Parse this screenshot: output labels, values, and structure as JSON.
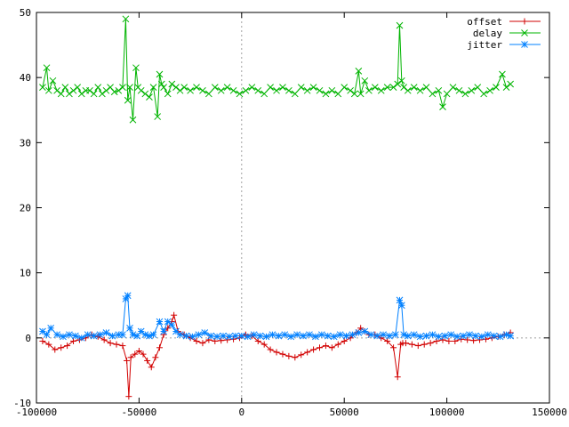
{
  "chart_data": {
    "type": "line",
    "title": "",
    "xlabel": "",
    "ylabel": "",
    "xlim": [
      -100000,
      150000
    ],
    "ylim": [
      -10,
      50
    ],
    "x_ticks": [
      -100000,
      -50000,
      0,
      50000,
      100000,
      150000
    ],
    "y_ticks": [
      -10,
      0,
      10,
      20,
      30,
      40,
      50
    ],
    "zero_lines": true,
    "legend_position": "top-right",
    "series": [
      {
        "name": "offset",
        "color": "#d20000",
        "marker": "plus",
        "x": [
          -97000,
          -94000,
          -91000,
          -88000,
          -85000,
          -82000,
          -79000,
          -76000,
          -73000,
          -70000,
          -67000,
          -64000,
          -61000,
          -58000,
          -56000,
          -55000,
          -54000,
          -52000,
          -50000,
          -48000,
          -46000,
          -44000,
          -42000,
          -40000,
          -38000,
          -36000,
          -34000,
          -33000,
          -31000,
          -28000,
          -25000,
          -22000,
          -19000,
          -16000,
          -13000,
          -10000,
          -7000,
          -4000,
          -1000,
          2000,
          5000,
          8000,
          11000,
          14000,
          17000,
          20000,
          23000,
          26000,
          29000,
          32000,
          35000,
          38000,
          41000,
          44000,
          47000,
          50000,
          53000,
          56000,
          58000,
          60000,
          62000,
          65000,
          68000,
          71000,
          74000,
          76000,
          77500,
          78500,
          80000,
          83000,
          86000,
          89000,
          92000,
          95000,
          98000,
          101000,
          104000,
          107000,
          110000,
          113000,
          116000,
          119000,
          122000,
          125000,
          128000,
          131000
        ],
        "y": [
          -0.5,
          -1.0,
          -1.8,
          -1.5,
          -1.2,
          -0.5,
          -0.3,
          0.0,
          0.5,
          0.2,
          -0.3,
          -0.8,
          -1.0,
          -1.2,
          -3.5,
          -9.0,
          -3.0,
          -2.5,
          -2.0,
          -2.5,
          -3.5,
          -4.5,
          -3.0,
          -1.5,
          0.5,
          1.5,
          2.5,
          3.5,
          1.0,
          0.5,
          0.0,
          -0.5,
          -0.8,
          -0.3,
          -0.5,
          -0.4,
          -0.3,
          -0.2,
          0.0,
          0.5,
          0.3,
          -0.5,
          -1.0,
          -1.8,
          -2.2,
          -2.5,
          -2.8,
          -3.0,
          -2.6,
          -2.2,
          -1.8,
          -1.5,
          -1.2,
          -1.5,
          -1.0,
          -0.5,
          0.0,
          0.8,
          1.5,
          1.0,
          0.5,
          0.5,
          0.0,
          -0.5,
          -1.5,
          -6.0,
          -1.0,
          -0.8,
          -0.8,
          -1.0,
          -1.2,
          -1.0,
          -0.8,
          -0.5,
          -0.3,
          -0.5,
          -0.5,
          -0.2,
          -0.3,
          -0.4,
          -0.3,
          -0.2,
          0.0,
          0.2,
          0.5,
          0.8
        ]
      },
      {
        "name": "delay",
        "color": "#00b400",
        "marker": "x",
        "x": [
          -97000,
          -95000,
          -94000,
          -92000,
          -90000,
          -88000,
          -86000,
          -84000,
          -82000,
          -80000,
          -78000,
          -76000,
          -74000,
          -72000,
          -70000,
          -68000,
          -66000,
          -64000,
          -62000,
          -60000,
          -58000,
          -56500,
          -55500,
          -54500,
          -53000,
          -51500,
          -50500,
          -49000,
          -47000,
          -45000,
          -43000,
          -41000,
          -40000,
          -39000,
          -38000,
          -36000,
          -34000,
          -32000,
          -30000,
          -28000,
          -25000,
          -22000,
          -19000,
          -16000,
          -13000,
          -10000,
          -7000,
          -4000,
          -1000,
          2000,
          5000,
          8000,
          11000,
          14000,
          17000,
          20000,
          23000,
          26000,
          29000,
          32000,
          35000,
          38000,
          41000,
          44000,
          47000,
          50000,
          53000,
          55000,
          57000,
          58000,
          60000,
          62000,
          65000,
          68000,
          71000,
          74000,
          76000,
          77000,
          78000,
          79000,
          81000,
          84000,
          87000,
          90000,
          93000,
          96000,
          98000,
          100000,
          103000,
          106000,
          109000,
          112000,
          115000,
          118000,
          121000,
          124000,
          127000,
          129000,
          131000
        ],
        "y": [
          38.5,
          41.5,
          38.0,
          39.5,
          38.0,
          37.5,
          38.5,
          37.5,
          38.0,
          38.5,
          37.5,
          38.0,
          38.0,
          37.5,
          38.5,
          37.5,
          38.0,
          38.5,
          37.8,
          38.0,
          38.5,
          49.0,
          36.5,
          38.5,
          33.5,
          41.5,
          38.5,
          38.0,
          37.5,
          37.0,
          38.5,
          34.0,
          40.5,
          39.0,
          38.5,
          37.5,
          39.0,
          38.5,
          38.0,
          38.5,
          38.0,
          38.5,
          38.0,
          37.5,
          38.5,
          38.0,
          38.5,
          38.0,
          37.5,
          38.0,
          38.5,
          38.0,
          37.5,
          38.5,
          38.0,
          38.5,
          38.0,
          37.5,
          38.5,
          38.0,
          38.5,
          38.0,
          37.5,
          38.0,
          37.5,
          38.5,
          38.0,
          37.5,
          41.0,
          37.5,
          39.5,
          38.0,
          38.5,
          38.0,
          38.5,
          38.5,
          39.0,
          48.0,
          39.5,
          38.5,
          38.0,
          38.5,
          38.0,
          38.5,
          37.5,
          38.0,
          35.5,
          37.5,
          38.5,
          38.0,
          37.5,
          38.0,
          38.5,
          37.5,
          38.0,
          38.5,
          40.5,
          38.5,
          39.0
        ]
      },
      {
        "name": "jitter",
        "color": "#0080ff",
        "marker": "star",
        "x": [
          -97000,
          -95000,
          -93000,
          -90000,
          -87000,
          -84000,
          -81000,
          -78000,
          -75000,
          -72000,
          -69000,
          -66000,
          -63000,
          -60000,
          -58000,
          -56500,
          -55500,
          -54500,
          -53000,
          -51000,
          -49000,
          -47000,
          -45000,
          -43000,
          -40000,
          -38000,
          -36000,
          -34000,
          -32000,
          -30000,
          -27000,
          -24000,
          -21000,
          -18000,
          -15000,
          -12000,
          -9000,
          -6000,
          -3000,
          0,
          3000,
          6000,
          9000,
          12000,
          15000,
          18000,
          21000,
          24000,
          27000,
          30000,
          33000,
          36000,
          39000,
          42000,
          45000,
          48000,
          51000,
          54000,
          57000,
          60000,
          63000,
          66000,
          69000,
          72000,
          75000,
          77000,
          78000,
          79000,
          81000,
          84000,
          87000,
          90000,
          93000,
          96000,
          99000,
          102000,
          105000,
          108000,
          111000,
          114000,
          117000,
          120000,
          123000,
          126000,
          129000,
          131000
        ],
        "y": [
          1.0,
          0.5,
          1.5,
          0.5,
          0.2,
          0.5,
          0.3,
          0.0,
          0.5,
          0.3,
          0.5,
          0.8,
          0.3,
          0.5,
          0.5,
          6.0,
          6.5,
          1.5,
          0.5,
          0.3,
          1.0,
          0.5,
          0.3,
          0.5,
          2.5,
          1.0,
          2.5,
          2.0,
          1.0,
          0.5,
          0.3,
          0.2,
          0.5,
          0.8,
          0.3,
          0.2,
          0.3,
          0.2,
          0.3,
          0.3,
          0.2,
          0.5,
          0.3,
          0.2,
          0.5,
          0.3,
          0.5,
          0.2,
          0.5,
          0.3,
          0.5,
          0.2,
          0.5,
          0.3,
          0.2,
          0.5,
          0.3,
          0.5,
          0.8,
          1.0,
          0.5,
          0.3,
          0.5,
          0.3,
          0.5,
          5.8,
          5.0,
          0.5,
          0.3,
          0.5,
          0.2,
          0.3,
          0.5,
          0.2,
          0.3,
          0.5,
          0.2,
          0.3,
          0.5,
          0.3,
          0.2,
          0.5,
          0.3,
          0.2,
          0.5,
          0.3
        ]
      }
    ]
  }
}
